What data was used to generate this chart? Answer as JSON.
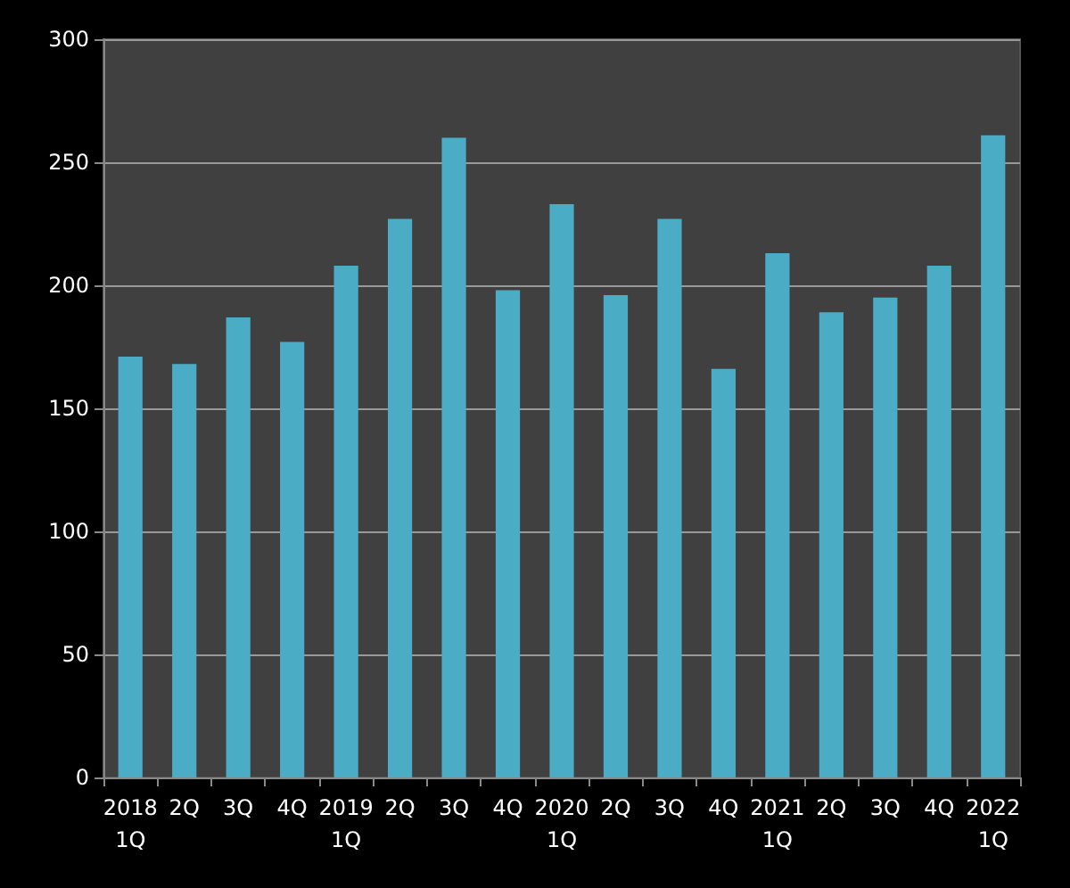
{
  "chart_data": {
    "type": "bar",
    "categories": [
      "2018\n1Q",
      "2Q",
      "3Q",
      "4Q",
      "2019\n1Q",
      "2Q",
      "3Q",
      "4Q",
      "2020\n1Q",
      "2Q",
      "3Q",
      "4Q",
      "2021\n1Q",
      "2Q",
      "3Q",
      "4Q",
      "2022\n1Q"
    ],
    "values": [
      171,
      168,
      187,
      177,
      208,
      227,
      260,
      198,
      233,
      196,
      227,
      166,
      213,
      189,
      195,
      208,
      261
    ],
    "color": "#4bacc6",
    "ylim": [
      0,
      300
    ],
    "yticks": [
      0,
      50,
      100,
      150,
      200,
      250,
      300
    ],
    "grid": "y"
  }
}
